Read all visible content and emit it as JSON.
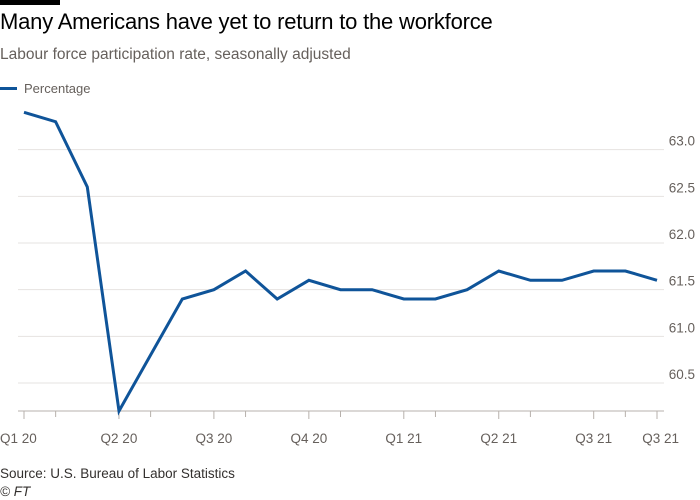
{
  "chart_data": {
    "type": "line",
    "title": "Many Americans have yet to return to the workforce",
    "subtitle": "Labour force participation rate, seasonally adjusted",
    "x": [
      "2020-01",
      "2020-02",
      "2020-03",
      "2020-04",
      "2020-05",
      "2020-06",
      "2020-07",
      "2020-08",
      "2020-09",
      "2020-10",
      "2020-11",
      "2020-12",
      "2021-01",
      "2021-02",
      "2021-03",
      "2021-04",
      "2021-05",
      "2021-06",
      "2021-07",
      "2021-08",
      "2021-09"
    ],
    "x_tick_labels": [
      "Q1 20",
      "Q2 20",
      "Q3 20",
      "Q4 20",
      "Q1 21",
      "Q2 21",
      "Q3 21",
      "Q3 21"
    ],
    "x_tick_positions": [
      "2020-01",
      "2020-04",
      "2020-07",
      "2020-10",
      "2021-01",
      "2021-04",
      "2021-07",
      "2021-09"
    ],
    "series": [
      {
        "name": "Percentage",
        "color": "#0f5499",
        "values": [
          63.4,
          63.3,
          62.6,
          60.2,
          60.8,
          61.4,
          61.5,
          61.7,
          61.4,
          61.6,
          61.5,
          61.5,
          61.4,
          61.4,
          61.5,
          61.7,
          61.6,
          61.6,
          61.7,
          61.7,
          61.6
        ]
      }
    ],
    "y_ticks": [
      "60.5",
      "61.0",
      "61.5",
      "62.0",
      "62.5",
      "63.0"
    ],
    "ylim": [
      60.2,
      63.5
    ],
    "y_axis_side": "right",
    "grid": true,
    "legend_position": "top-left",
    "source": "Source: U.S. Bureau of Labor Statistics",
    "copyright": "© FT"
  }
}
